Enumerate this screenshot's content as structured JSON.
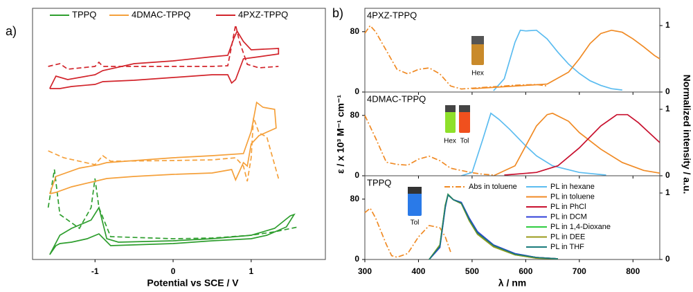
{
  "chart_data": [
    {
      "type": "line",
      "panel_label": "a)",
      "xlabel": "Potential vs SCE / V",
      "xlim": [
        -1.8,
        1.95
      ],
      "xticks": [
        -1,
        0,
        1
      ],
      "ylim": [
        0,
        363
      ],
      "legend": "top",
      "series": [
        {
          "name": "TPPQ",
          "color": "#2e9e2e",
          "linestyle": "solid",
          "x": [
            -1.58,
            -1.45,
            -1.3,
            -1.05,
            -0.95,
            -0.85,
            -0.7,
            0,
            0.5,
            1.0,
            1.3,
            1.5,
            1.55,
            1.45,
            1.2,
            1.0,
            0.5,
            0,
            -0.8,
            -0.95,
            -1.1,
            -1.3,
            -1.45,
            -1.5,
            -1.58
          ],
          "values": [
            7,
            35,
            45,
            57,
            75,
            30,
            25,
            27,
            30,
            35,
            45,
            63,
            65,
            47,
            35,
            30,
            27,
            23,
            20,
            37,
            30,
            25,
            23,
            20,
            7
          ]
        },
        {
          "color": "#2e9e2e",
          "linestyle": "dashed",
          "x": [
            -1.6,
            -1.52,
            -1.45,
            -1.2,
            -1.05,
            -1.0,
            -0.95,
            -0.8,
            0,
            0.5,
            1.0,
            1.3,
            1.6
          ],
          "values": [
            75,
            130,
            65,
            45,
            75,
            117,
            75,
            33,
            30,
            31,
            35,
            40,
            47
          ]
        },
        {
          "name": "4DMAC-TPPQ",
          "color": "#f5a03a",
          "linestyle": "solid",
          "x": [
            -1.58,
            -1.5,
            -1.2,
            -0.95,
            -0.85,
            0,
            0.5,
            0.9,
            1.0,
            1.07,
            1.15,
            1.3,
            1.32,
            1.1,
            1.0,
            0.95,
            0.9,
            0.8,
            0.75,
            0.5,
            0,
            -0.5,
            -0.85,
            -1.0,
            -1.3,
            -1.5,
            -1.58
          ],
          "values": [
            95,
            120,
            132,
            137,
            140,
            147,
            150,
            153,
            185,
            227,
            220,
            217,
            190,
            179,
            167,
            135,
            140,
            115,
            130,
            125,
            123,
            120,
            117,
            113,
            105,
            97,
            95
          ]
        },
        {
          "color": "#f5a03a",
          "linestyle": "dashed",
          "x": [
            -1.6,
            -1.4,
            -1.0,
            -0.9,
            -0.8,
            0,
            0.5,
            0.8,
            0.9,
            0.95,
            1.0,
            1.03,
            1.1,
            1.2,
            1.35
          ],
          "values": [
            157,
            147,
            137,
            150,
            142,
            143,
            144,
            147,
            135,
            113,
            147,
            205,
            183,
            177,
            117
          ]
        },
        {
          "name": "4PXZ-TPPQ",
          "color": "#d2232a",
          "linestyle": "solid",
          "x": [
            -1.58,
            -1.5,
            -1.35,
            -1.0,
            -0.9,
            -0.5,
            0,
            0.5,
            0.7,
            0.78,
            0.82,
            0.9,
            1.0,
            1.35,
            1.35,
            1.1,
            0.9,
            0.8,
            0.75,
            0.7,
            0.5,
            0,
            -0.5,
            -0.9,
            -1.0,
            -1.3,
            -1.45,
            -1.58
          ],
          "values": [
            247,
            265,
            260,
            267,
            273,
            283,
            287,
            293,
            295,
            320,
            330,
            315,
            303,
            305,
            297,
            293,
            290,
            260,
            255,
            267,
            267,
            263,
            259,
            257,
            253,
            250,
            247,
            247
          ]
        },
        {
          "color": "#d2232a",
          "linestyle": "dashed",
          "x": [
            -1.6,
            -1.45,
            -1.35,
            -1.0,
            -0.95,
            -0.9,
            -0.5,
            0,
            0.5,
            0.7,
            0.76,
            0.8,
            0.85,
            0.95,
            1.1,
            1.35
          ],
          "values": [
            279,
            283,
            275,
            279,
            285,
            279,
            279,
            279,
            279,
            280,
            315,
            339,
            315,
            282,
            277,
            279
          ]
        }
      ]
    },
    {
      "type": "line",
      "panel_label": "b)",
      "title": "4PXZ-TPPQ",
      "annotations": [
        "Hex"
      ],
      "xlim": [
        300,
        850
      ],
      "xticks": [
        300,
        400,
        500,
        600,
        700,
        800
      ],
      "show_xticklabels": false,
      "ylim": [
        0,
        111
      ],
      "yticks": [
        0,
        80
      ],
      "y2lim": [
        0,
        1.26
      ],
      "y2ticks": [
        0,
        1
      ],
      "series": [
        {
          "name": "Abs in toluene",
          "color": "#f08a24",
          "linestyle": "dashdot",
          "x": [
            300,
            310,
            320,
            340,
            360,
            380,
            400,
            420,
            440,
            460,
            480,
            500,
            540,
            580,
            620,
            640
          ],
          "values": [
            78,
            88,
            80,
            55,
            30,
            24,
            30,
            32,
            24,
            8,
            4,
            5,
            7,
            9,
            10,
            8
          ]
        },
        {
          "name": "PL in hexane",
          "color": "#5bbcf0",
          "linestyle": "solid",
          "axis": "y2",
          "x": [
            540,
            560,
            580,
            590,
            600,
            620,
            640,
            660,
            680,
            700,
            720,
            740,
            760,
            780
          ],
          "values": [
            0.02,
            0.2,
            0.75,
            0.93,
            0.92,
            0.93,
            0.8,
            0.6,
            0.42,
            0.28,
            0.17,
            0.1,
            0.05,
            0.03
          ]
        },
        {
          "name": "PL in toluene",
          "color": "#f08a24",
          "linestyle": "solid",
          "axis": "y2",
          "x": [
            500,
            600,
            640,
            680,
            700,
            720,
            740,
            760,
            780,
            800,
            820,
            840,
            850
          ],
          "values": [
            0.05,
            0.1,
            0.12,
            0.3,
            0.5,
            0.73,
            0.88,
            0.93,
            0.9,
            0.8,
            0.68,
            0.55,
            0.5
          ]
        }
      ]
    },
    {
      "type": "line",
      "title": "4DMAC-TPPQ",
      "annotations": [
        "Hex",
        "Tol"
      ],
      "ylabel": "ε / x 10³ M⁻¹ cm⁻¹",
      "y2label": "Normalized intensity / a.u.",
      "xlim": [
        300,
        850
      ],
      "xticks": [
        300,
        400,
        500,
        600,
        700,
        800
      ],
      "show_xticklabels": false,
      "ylim": [
        0,
        111
      ],
      "yticks": [
        0,
        80
      ],
      "y2lim": [
        0,
        1.26
      ],
      "y2ticks": [
        0,
        1
      ],
      "series": [
        {
          "name": "Abs in toluene",
          "color": "#f08a24",
          "linestyle": "dashdot",
          "x": [
            300,
            320,
            340,
            360,
            380,
            400,
            420,
            440,
            460,
            480,
            500,
            520,
            540
          ],
          "values": [
            80,
            50,
            18,
            15,
            14,
            22,
            26,
            20,
            10,
            7,
            4,
            2,
            1
          ]
        },
        {
          "name": "PL in hexane",
          "color": "#5bbcf0",
          "linestyle": "solid",
          "axis": "y2",
          "x": [
            480,
            500,
            520,
            535,
            550,
            570,
            600,
            620,
            650,
            700,
            750
          ],
          "values": [
            0,
            0.05,
            0.55,
            0.94,
            0.85,
            0.7,
            0.45,
            0.3,
            0.15,
            0.05,
            0.01
          ]
        },
        {
          "name": "PL in toluene",
          "color": "#f08a24",
          "linestyle": "solid",
          "axis": "y2",
          "x": [
            540,
            580,
            600,
            620,
            640,
            650,
            680,
            700,
            740,
            780,
            820,
            850
          ],
          "values": [
            0,
            0.15,
            0.45,
            0.75,
            0.92,
            0.94,
            0.82,
            0.65,
            0.4,
            0.2,
            0.08,
            0.04
          ]
        },
        {
          "name": "PL in PhCl",
          "color": "#c8102e",
          "linestyle": "solid",
          "axis": "y2",
          "x": [
            560,
            620,
            660,
            700,
            740,
            770,
            790,
            810,
            830,
            850
          ],
          "values": [
            0.01,
            0.05,
            0.15,
            0.42,
            0.75,
            0.92,
            0.92,
            0.8,
            0.65,
            0.5
          ]
        }
      ]
    },
    {
      "type": "line",
      "title": "TPPQ",
      "annotations": [
        "Tol"
      ],
      "xlabel": "λ / nm",
      "legend": "upper right",
      "xlim": [
        300,
        850
      ],
      "xticks": [
        300,
        400,
        500,
        600,
        700,
        800
      ],
      "ylim": [
        0,
        111
      ],
      "yticks": [
        0,
        80
      ],
      "y2lim": [
        0,
        1.26
      ],
      "y2ticks": [
        0,
        1
      ],
      "series": [
        {
          "name": "Abs in toluene",
          "color": "#f08a24",
          "linestyle": "dashdot",
          "x": [
            300,
            310,
            320,
            340,
            350,
            360,
            380,
            400,
            420,
            440,
            450,
            460
          ],
          "values": [
            62,
            68,
            55,
            20,
            5,
            3,
            8,
            30,
            45,
            42,
            30,
            10
          ]
        },
        {
          "name": "PL in hexane",
          "color": "#5bbcf0",
          "linestyle": "solid",
          "axis": "y2",
          "x": [
            420,
            440,
            450,
            455,
            465,
            480,
            495,
            510,
            540,
            580,
            620,
            660
          ],
          "values": [
            0,
            0.2,
            0.8,
            0.98,
            0.9,
            0.85,
            0.6,
            0.4,
            0.2,
            0.08,
            0.03,
            0.01
          ]
        },
        {
          "name": "PL in toluene",
          "color": "#f08a24",
          "linestyle": "solid",
          "axis": "y2",
          "x": [
            420,
            440,
            450,
            455,
            465,
            480,
            495,
            510,
            540,
            580,
            620,
            660
          ],
          "values": [
            0,
            0.2,
            0.8,
            0.98,
            0.9,
            0.85,
            0.6,
            0.4,
            0.2,
            0.08,
            0.03,
            0.01
          ]
        },
        {
          "name": "PL in PhCl",
          "color": "#c8102e",
          "linestyle": "solid",
          "axis": "y2",
          "x": [
            420,
            440,
            450,
            455,
            465,
            480,
            495,
            510,
            540,
            580,
            620,
            660
          ],
          "values": [
            0,
            0.2,
            0.8,
            0.98,
            0.9,
            0.85,
            0.6,
            0.4,
            0.2,
            0.08,
            0.03,
            0.01
          ]
        },
        {
          "name": "PL in DCM",
          "color": "#2f3fd8",
          "linestyle": "solid",
          "axis": "y2",
          "x": [
            420,
            440,
            450,
            455,
            465,
            480,
            495,
            510,
            540,
            580,
            620,
            660
          ],
          "values": [
            0,
            0.18,
            0.78,
            0.98,
            0.9,
            0.86,
            0.62,
            0.42,
            0.22,
            0.09,
            0.03,
            0.01
          ]
        },
        {
          "name": "PL in 1,4-Dioxane",
          "color": "#2ecc40",
          "linestyle": "solid",
          "axis": "y2",
          "x": [
            420,
            440,
            450,
            455,
            465,
            480,
            495,
            510,
            540,
            580,
            620,
            660
          ],
          "values": [
            0,
            0.22,
            0.82,
            0.98,
            0.9,
            0.84,
            0.58,
            0.38,
            0.19,
            0.07,
            0.02,
            0.01
          ]
        },
        {
          "name": "PL in DEE",
          "color": "#9a9a1a",
          "linestyle": "solid",
          "axis": "y2",
          "x": [
            420,
            440,
            450,
            455,
            465,
            480,
            495,
            510,
            540,
            580,
            620,
            660
          ],
          "values": [
            0,
            0.22,
            0.82,
            0.97,
            0.9,
            0.84,
            0.58,
            0.38,
            0.19,
            0.07,
            0.02,
            0.01
          ]
        },
        {
          "name": "PL in THF",
          "color": "#1a7a7a",
          "linestyle": "solid",
          "axis": "y2",
          "x": [
            420,
            440,
            450,
            455,
            465,
            480,
            495,
            510,
            540,
            580,
            620,
            660
          ],
          "values": [
            0,
            0.2,
            0.8,
            0.97,
            0.9,
            0.85,
            0.6,
            0.4,
            0.21,
            0.08,
            0.03,
            0.01
          ]
        }
      ]
    }
  ]
}
